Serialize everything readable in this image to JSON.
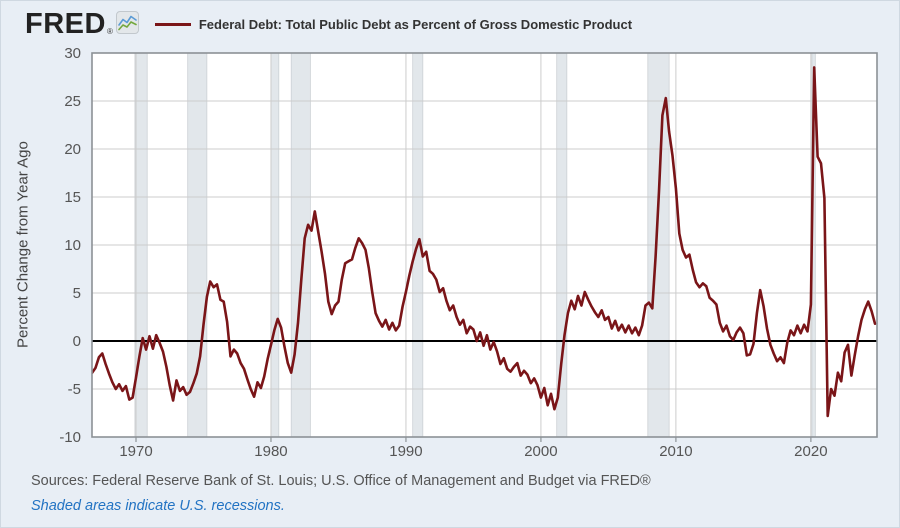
{
  "header": {
    "logo_text": "FRED",
    "logo_reg": "®",
    "logo_icon": "line-chart-icon",
    "legend_label": "Federal Debt: Total Public Debt as Percent of Gross Domestic Product"
  },
  "footer": {
    "sources": "Sources: Federal Reserve Bank of St. Louis; U.S. Office of Management and Budget via FRED®",
    "recession_note": "Shaded areas indicate U.S. recessions."
  },
  "colors": {
    "page_background": "#e8eef5",
    "plot_background": "#ffffff",
    "series_line": "#7a1518",
    "zero_line": "#000000",
    "gridline": "#cccccc",
    "plot_border": "#8c9196",
    "recession_band": "#e2e7eb",
    "axis_text": "#555555",
    "note_blue": "#2273c3"
  },
  "chart_data": {
    "type": "line",
    "title": "Federal Debt: Total Public Debt as Percent of Gross Domestic Product",
    "xlabel": "",
    "ylabel": "Percent Change from Year Ago",
    "x_range": [
      1966.74,
      2024.9
    ],
    "ylim": [
      -10,
      30
    ],
    "y_ticks": [
      30,
      25,
      20,
      15,
      10,
      5,
      0,
      -5,
      -10
    ],
    "x_ticks": [
      1970,
      1980,
      1990,
      2000,
      2010,
      2020
    ],
    "grid": true,
    "zero_line": true,
    "legend_position": "top-header",
    "frequency": "quarterly",
    "recessions": [
      [
        1969.92,
        1970.83
      ],
      [
        1973.83,
        1975.25
      ],
      [
        1980.0,
        1980.58
      ],
      [
        1981.5,
        1982.92
      ],
      [
        1990.5,
        1991.25
      ],
      [
        2001.17,
        2001.92
      ],
      [
        2007.92,
        2009.5
      ],
      [
        2020.08,
        2020.33
      ]
    ],
    "series": [
      {
        "name": "Federal Debt: Total Public Debt as Percent of Gross Domestic Product",
        "units": "Percent Change from Year Ago",
        "start_year": 1966.75,
        "step": 0.25,
        "values": [
          -3.3,
          -2.8,
          -1.7,
          -1.3,
          -2.4,
          -3.4,
          -4.3,
          -5.0,
          -4.5,
          -5.2,
          -4.7,
          -6.1,
          -5.9,
          -3.8,
          -1.6,
          0.3,
          -0.9,
          0.5,
          -0.8,
          0.6,
          -0.2,
          -1.1,
          -2.7,
          -4.6,
          -6.2,
          -4.1,
          -5.2,
          -4.8,
          -5.6,
          -5.3,
          -4.4,
          -3.4,
          -1.6,
          1.7,
          4.6,
          6.2,
          5.6,
          5.9,
          4.3,
          4.1,
          2.0,
          -1.6,
          -0.9,
          -1.3,
          -2.3,
          -2.9,
          -4.0,
          -5.0,
          -5.8,
          -4.3,
          -4.9,
          -3.7,
          -1.9,
          -0.4,
          1.1,
          2.3,
          1.4,
          -0.6,
          -2.3,
          -3.3,
          -1.4,
          1.9,
          6.4,
          10.7,
          12.1,
          11.5,
          13.5,
          11.4,
          9.3,
          7.0,
          4.1,
          2.8,
          3.7,
          4.1,
          6.4,
          8.1,
          8.3,
          8.5,
          9.7,
          10.7,
          10.2,
          9.5,
          7.6,
          5.1,
          2.9,
          2.1,
          1.5,
          2.2,
          1.2,
          1.9,
          1.1,
          1.6,
          3.6,
          5.1,
          6.8,
          8.3,
          9.6,
          10.6,
          8.8,
          9.3,
          7.3,
          7.0,
          6.4,
          5.1,
          5.5,
          4.2,
          3.2,
          3.7,
          2.5,
          1.7,
          2.2,
          0.8,
          1.5,
          1.2,
          0.0,
          0.9,
          -0.5,
          0.6,
          -0.9,
          -0.1,
          -1.1,
          -2.4,
          -1.8,
          -2.9,
          -3.2,
          -2.7,
          -2.3,
          -3.6,
          -3.1,
          -3.5,
          -4.4,
          -3.9,
          -4.6,
          -5.9,
          -4.9,
          -6.7,
          -5.5,
          -7.1,
          -5.9,
          -2.4,
          0.6,
          2.9,
          4.2,
          3.3,
          4.7,
          3.7,
          5.1,
          4.3,
          3.6,
          3.0,
          2.5,
          3.2,
          2.2,
          2.5,
          1.3,
          2.1,
          1.1,
          1.7,
          0.9,
          1.6,
          0.8,
          1.4,
          0.6,
          1.6,
          3.7,
          4.0,
          3.4,
          8.8,
          15.6,
          23.5,
          25.3,
          21.8,
          19.3,
          15.9,
          11.2,
          9.5,
          8.7,
          9.0,
          7.4,
          6.1,
          5.6,
          6.0,
          5.7,
          4.5,
          4.2,
          3.8,
          1.9,
          1.0,
          1.6,
          0.5,
          0.1,
          0.9,
          1.4,
          0.8,
          -1.5,
          -1.4,
          -0.3,
          2.9,
          5.3,
          3.6,
          1.3,
          -0.4,
          -1.3,
          -2.1,
          -1.7,
          -2.3,
          -0.2,
          1.1,
          0.6,
          1.6,
          0.8,
          1.7,
          1.0,
          3.8,
          28.5,
          19.2,
          18.5,
          14.9,
          -7.8,
          -5.0,
          -5.7,
          -3.3,
          -4.2,
          -1.2,
          -0.4,
          -3.6,
          -1.5,
          0.5,
          2.2,
          3.3,
          4.1,
          3.1,
          1.8
        ]
      }
    ]
  }
}
